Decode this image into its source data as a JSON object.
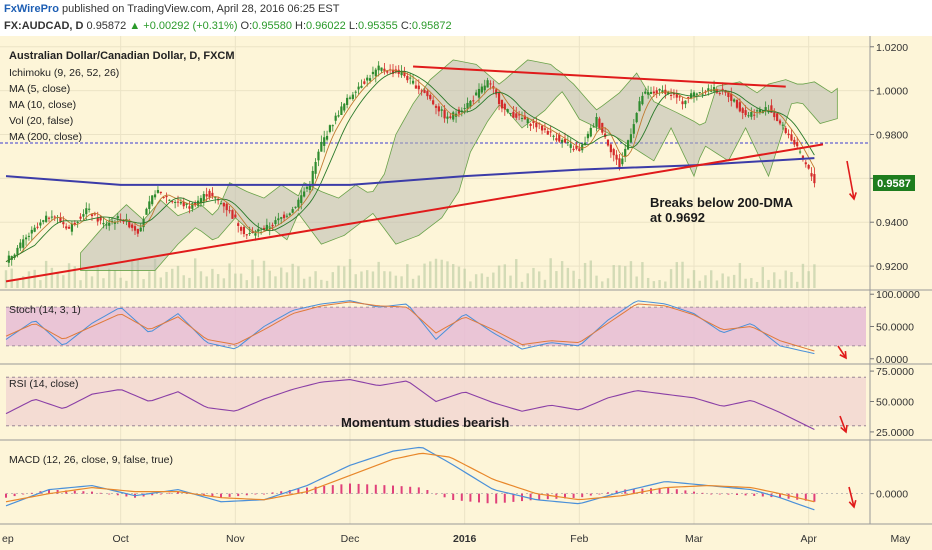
{
  "header": {
    "brand": "FxWirePro",
    "published": "published on TradingView.com, April 28, 2016 06:25 EST",
    "symbol": "FX:AUDCAD, D",
    "last": "0.95872",
    "arrow": "▲",
    "change": "+0.00292 (+0.31%)",
    "o_label": "O:",
    "o_value": "0.95580",
    "h_label": "H:",
    "h_value": "0.96022",
    "l_label": "L:",
    "l_value": "0.95355",
    "c_label": "C:",
    "c_value": "0.95872"
  },
  "colors": {
    "background": "#fdf5d8",
    "bull": "#2e8b2e",
    "bear": "#d42a2a",
    "trend": "#e01b1b",
    "ma200": "#3c3ca8",
    "cloud_fill": "#b9b9b0",
    "stoch_band": "#e6bcd6",
    "rsi_band": "#f3d9d3",
    "stoch_k": "#4a90d9",
    "stoch_d": "#e07a3a",
    "rsi": "#8a3fa6",
    "macd": "#4a90d9",
    "signal": "#e8872a",
    "hist_pos": "#e0407a",
    "hist_neg": "#e0407a",
    "price_tag": "#1e7d1e"
  },
  "main_pane": {
    "title": "Australian Dollar/Canadian Dollar, D, FXCM",
    "indicators": [
      "Ichimoku (9, 26, 52, 26)",
      "MA (5, close)",
      "MA (10, close)",
      "Vol (20, false)",
      "MA (200, close)"
    ],
    "annotation": [
      "Breaks below 200-DMA",
      "at 0.9692"
    ],
    "current_price": "0.9587"
  },
  "stoch_pane": {
    "title": "Stoch (14, 3, 1)"
  },
  "rsi_pane": {
    "title": "RSI (14, close)",
    "annotation": "Momentum studies bearish"
  },
  "macd_pane": {
    "title": "MACD (12, 26, close, 9, false, true)"
  },
  "chart_data": {
    "type": "line",
    "title": "Australian Dollar/Canadian Dollar, D, FXCM",
    "x_labels": [
      "ep",
      "Oct",
      "Nov",
      "Dec",
      "2016",
      "Feb",
      "Mar",
      "Apr",
      "May"
    ],
    "price_axis": {
      "ticks": [
        "1.0200",
        "1.0000",
        "0.9800",
        "0.9600",
        "0.9400",
        "0.9200"
      ],
      "range": [
        0.91,
        1.024
      ]
    },
    "stoch_axis": {
      "ticks": [
        "100.0000",
        "50.0000",
        "0.0000"
      ],
      "range": [
        -5,
        105
      ],
      "levels": [
        20,
        80
      ]
    },
    "rsi_axis": {
      "ticks": [
        "75.0000",
        "50.0000",
        "25.0000"
      ],
      "range": [
        20,
        80
      ],
      "levels": [
        30,
        70
      ]
    },
    "macd_axis": {
      "ticks": [
        "0.0000"
      ],
      "range": [
        -0.014,
        0.026
      ]
    },
    "series": [
      {
        "name": "AUDCAD close",
        "x": [
          0,
          8,
          16,
          22,
          28,
          34,
          40,
          46,
          52,
          58,
          64,
          70,
          76,
          84,
          92,
          100,
          106,
          110,
          116,
          122,
          130,
          138,
          146,
          154,
          162,
          168,
          174,
          182,
          188,
          194,
          200,
          206,
          214,
          222,
          230,
          236,
          240,
          246,
          252,
          258,
          266,
          274,
          282
        ],
        "y": [
          0.922,
          0.934,
          0.944,
          0.937,
          0.946,
          0.939,
          0.942,
          0.936,
          0.954,
          0.95,
          0.947,
          0.953,
          0.948,
          0.934,
          0.938,
          0.946,
          0.958,
          0.976,
          0.99,
          1.001,
          1.01,
          1.008,
          0.999,
          0.987,
          0.995,
          1.004,
          0.991,
          0.986,
          0.982,
          0.977,
          0.972,
          0.987,
          0.965,
          0.998,
          1.0,
          0.995,
          0.999,
          1.001,
          0.998,
          0.989,
          0.992,
          0.978,
          0.9587
        ]
      },
      {
        "name": "MA (200, close)",
        "x": [
          0,
          40,
          80,
          120,
          160,
          200,
          240,
          282
        ],
        "y": [
          0.961,
          0.957,
          0.957,
          0.957,
          0.961,
          0.964,
          0.966,
          0.9692
        ]
      },
      {
        "name": "Trendline support",
        "x": [
          0,
          285
        ],
        "y": [
          0.913,
          0.9755
        ]
      },
      {
        "name": "Trendline resistance",
        "x": [
          142,
          272
        ],
        "y": [
          1.011,
          1.0018
        ]
      }
    ],
    "stoch": {
      "x": [
        0,
        10,
        20,
        30,
        40,
        50,
        60,
        70,
        80,
        90,
        100,
        110,
        120,
        130,
        140,
        150,
        160,
        170,
        180,
        190,
        200,
        210,
        220,
        230,
        240,
        250,
        260,
        270,
        282
      ],
      "k": [
        30,
        60,
        20,
        55,
        80,
        40,
        70,
        25,
        15,
        50,
        75,
        85,
        90,
        80,
        85,
        30,
        70,
        40,
        15,
        25,
        20,
        60,
        90,
        85,
        70,
        40,
        55,
        20,
        8
      ],
      "d": [
        35,
        55,
        30,
        50,
        70,
        45,
        65,
        30,
        22,
        45,
        70,
        82,
        88,
        82,
        80,
        40,
        65,
        45,
        22,
        28,
        25,
        55,
        85,
        82,
        68,
        45,
        50,
        28,
        12
      ]
    },
    "rsi": {
      "x": [
        0,
        10,
        20,
        30,
        40,
        50,
        60,
        70,
        80,
        90,
        100,
        110,
        120,
        130,
        140,
        150,
        160,
        170,
        180,
        190,
        200,
        210,
        220,
        230,
        240,
        250,
        260,
        270,
        282
      ],
      "y": [
        40,
        52,
        44,
        56,
        60,
        50,
        58,
        45,
        42,
        52,
        60,
        66,
        68,
        63,
        67,
        50,
        58,
        49,
        42,
        47,
        43,
        53,
        59,
        56,
        53,
        46,
        51,
        41,
        27
      ]
    },
    "macd": {
      "x": [
        0,
        15,
        30,
        45,
        60,
        75,
        90,
        105,
        120,
        135,
        145,
        155,
        170,
        185,
        200,
        215,
        230,
        245,
        260,
        270,
        282
      ],
      "macd": [
        -0.006,
        0.002,
        0.004,
        -0.001,
        0.002,
        -0.004,
        -0.003,
        0.004,
        0.014,
        0.021,
        0.023,
        0.015,
        0.002,
        -0.003,
        -0.005,
        0.001,
        0.006,
        0.004,
        0.002,
        -0.002,
        -0.008
      ],
      "signal": [
        -0.004,
        0.0,
        0.003,
        0.001,
        0.001,
        -0.002,
        -0.003,
        0.001,
        0.009,
        0.017,
        0.02,
        0.018,
        0.007,
        0.0,
        -0.003,
        -0.001,
        0.003,
        0.004,
        0.003,
        0.0,
        -0.004
      ]
    }
  }
}
